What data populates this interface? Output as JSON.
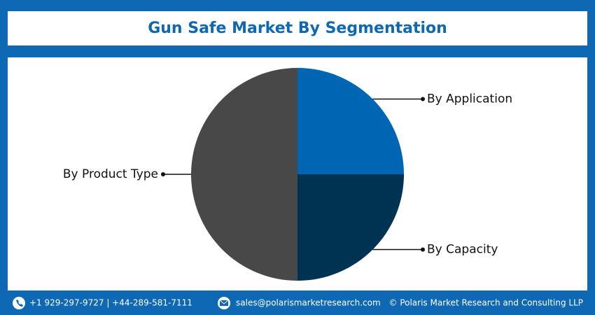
{
  "chart_data": {
    "type": "pie",
    "title": "Gun Safe Market By Segmentation",
    "categories": [
      "By Application",
      "By Capacity",
      "By Product Type"
    ],
    "values": [
      25,
      25,
      50
    ],
    "colors": [
      "#0066b3",
      "#003352",
      "#484848"
    ]
  },
  "footer": {
    "phone": "+1 929-297-9727 | +44-289-581-7111",
    "email": "sales@polarismarketresearch.com",
    "copyright": "© Polaris Market Research and Consulting LLP"
  }
}
